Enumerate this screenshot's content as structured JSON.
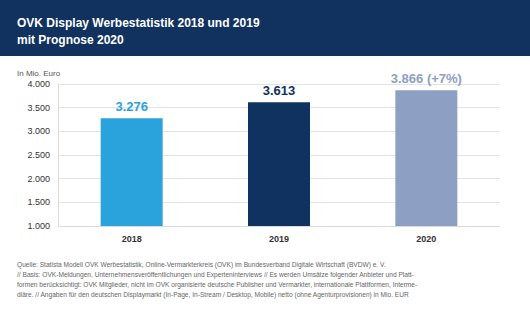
{
  "chart_data": {
    "type": "bar",
    "title": "OVK Display Werbestatistik 2018 und 2019\nmit Prognose 2020",
    "subtitle": "In Mio. Euro",
    "note": "Quelle: Statista Modell OVK Werbestatistik, Online-Vermarkterkreis (OVK) im Bundesverband Digitale Wirtschaft (BVDW) e. V.\n// Basis: OVK-Meldungen, Unternehmensveröffentlichungen und Experteninterviews // Es werden Umsätze folgender Anbieter und Platt-\nformen berücksichtigt: OVK Mitglieder, nicht im OVK organisierte deutsche Publisher und Vermarkter, internationale Plattformen, Interme-\ndiäre. // Angaben für den deutschen Displaymarkt (In-Page, In-Stream / Desktop, Mobile) netto (ohne Agenturprovisionen) in Mio. EUR",
    "categories": [
      "2018",
      "2019",
      "2020"
    ],
    "values": [
      3276,
      3613,
      3866
    ],
    "value_labels": [
      "3.276",
      "3.613",
      "3.866 (+7%)"
    ],
    "colors": [
      "#2aa3dc",
      "#0f3261",
      "#8d9fc2"
    ],
    "data_labels": true,
    "ylim": [
      1000,
      4000
    ],
    "yticks": [
      {
        "value": 1000,
        "label": "1.000"
      },
      {
        "value": 1500,
        "label": "1.500"
      },
      {
        "value": 2000,
        "label": "2.000"
      },
      {
        "value": 2500,
        "label": "2.500"
      },
      {
        "value": 3000,
        "label": "3.000"
      },
      {
        "value": 3500,
        "label": "3.500"
      },
      {
        "value": 4000,
        "label": "4.000"
      }
    ],
    "grid": true
  }
}
